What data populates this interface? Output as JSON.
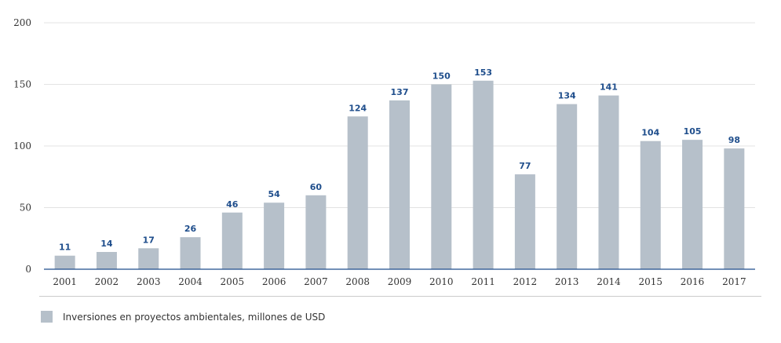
{
  "chart_data": {
    "type": "bar",
    "categories": [
      "2001",
      "2002",
      "2003",
      "2004",
      "2005",
      "2006",
      "2007",
      "2008",
      "2009",
      "2010",
      "2011",
      "2012",
      "2013",
      "2014",
      "2015",
      "2016",
      "2017"
    ],
    "series": [
      {
        "name": "Inversiones en proyectos ambientales, millones de USD",
        "values": [
          11,
          14,
          17,
          26,
          46,
          54,
          60,
          124,
          137,
          150,
          153,
          77,
          134,
          141,
          104,
          105,
          98
        ]
      }
    ],
    "ylim": [
      0,
      200
    ],
    "yticks": [
      0,
      50,
      100,
      150,
      200
    ],
    "grid": true,
    "legend_position": "bottom-left",
    "data_labels": true,
    "colors": {
      "bar": "#b6c0ca",
      "label": "#1f4e8c",
      "axis": "#1f4e8c",
      "grid": "#e3e3e3"
    }
  }
}
